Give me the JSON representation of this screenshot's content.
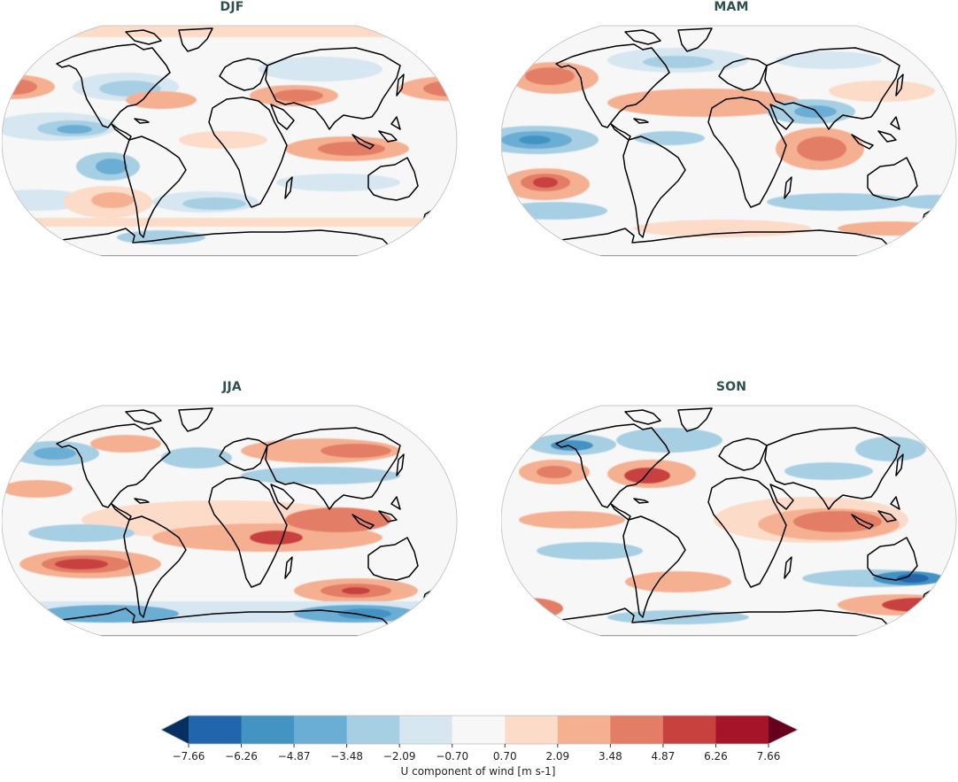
{
  "figure": {
    "variable_label": "U component of wind [m s-1]"
  },
  "panels": [
    {
      "id": "djf",
      "title": "DJF"
    },
    {
      "id": "mam",
      "title": "MAM"
    },
    {
      "id": "jja",
      "title": "JJA"
    },
    {
      "id": "son",
      "title": "SON"
    }
  ],
  "colorbar": {
    "label": "U component of wind [m s-1]",
    "ticks": [
      "−7.66",
      "−6.26",
      "−4.87",
      "−3.48",
      "−2.09",
      "−0.70",
      "0.70",
      "2.09",
      "3.48",
      "4.87",
      "6.26",
      "7.66"
    ],
    "tick_values": [
      -7.66,
      -6.26,
      -4.87,
      -3.48,
      -2.09,
      -0.7,
      0.7,
      2.09,
      3.48,
      4.87,
      6.26,
      7.66
    ],
    "under_color": "#053061",
    "over_color": "#67001f",
    "colors": [
      "#2166ac",
      "#4393c3",
      "#6aadd5",
      "#a7cfe4",
      "#d6e7f1",
      "#f7f7f7",
      "#fcdbc8",
      "#f5b091",
      "#e37d65",
      "#c8413f",
      "#a51429"
    ],
    "extend": "both"
  },
  "chart_data": {
    "type": "heatmap",
    "title": "Seasonal U component of wind anomaly maps",
    "projection": "Robinson (global)",
    "panels": [
      "DJF",
      "MAM",
      "JJA",
      "SON"
    ],
    "colorbar_label": "U component of wind [m s-1]",
    "levels": [
      -7.66,
      -6.26,
      -4.87,
      -3.48,
      -2.09,
      -0.7,
      0.7,
      2.09,
      3.48,
      4.87,
      6.26,
      7.66
    ],
    "vmin": -7.66,
    "vmax": 7.66,
    "colormap": "RdBu_r",
    "extend": "both",
    "layout": "2x2 grid with shared horizontal colorbar at bottom",
    "notable_features": {
      "DJF": [
        "positive max (~4.9-6.3) NW Pacific jet near Japan",
        "positive band Middle East",
        "positive band central Indian Ocean",
        "negative (~-3.5 to -4.9) tropical east Pacific and off Peru"
      ],
      "MAM": [
        "negative (~-4.9) central Pacific tropics",
        "positive max (~4.9-6.3) SE Pacific",
        "positive (~3.5-4.9) Arabian Sea/western Indian Ocean",
        "positive band North Atlantic"
      ],
      "JJA": [
        "strong positive (~4.9-6.3) South Pacific band",
        "positive over Indian Ocean/maritime continent and Africa",
        "negative (~-3.5 to -4.9) Southern Ocean",
        "positive band N Asia"
      ],
      "SON": [
        "positive max (~4.9-6.3) western North Atlantic near Florida",
        "positive broad Indian Ocean",
        "negative (~-4.9 to -6.3) E Australia/Tasman",
        "positive (~4.9-6.3) south of New Zealand"
      ]
    }
  }
}
